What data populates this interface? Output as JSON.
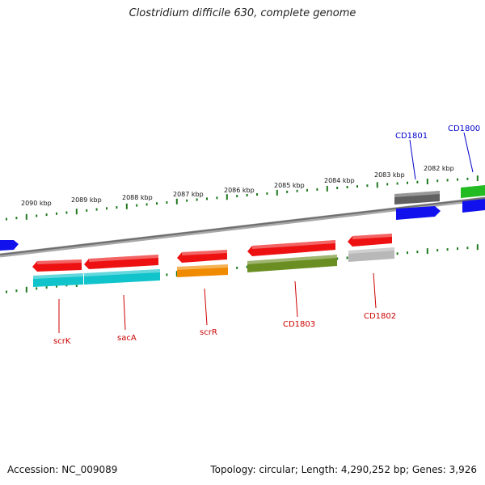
{
  "title": "Clostridium difficile 630, complete genome",
  "footer": {
    "accession": "Accession: NC_009089",
    "stats": "Topology: circular; Length: 4,290,252 bp; Genes: 3,926"
  },
  "ruler": {
    "labels": [
      "2090 kbp",
      "2089 kbp",
      "2088 kbp",
      "2087 kbp",
      "2086 kbp",
      "2085 kbp",
      "2084 kbp",
      "2083 kbp",
      "2082 kbp"
    ]
  },
  "genes": {
    "labels_bottom": [
      "scrK",
      "sacA",
      "scrR",
      "CD1803",
      "CD1802"
    ],
    "labels_top": [
      "CD1801",
      "CD1800"
    ]
  },
  "colors": {
    "red": "#ee1111",
    "cyan": "#11c4cc",
    "orange": "#f08a00",
    "olive": "#6b8e23",
    "lightgray": "#b8b8b8",
    "darkgray": "#606060",
    "blue": "#1111ee",
    "green": "#22bb22",
    "tick_green": "#1f7a1f",
    "label_red": "#cc0000",
    "label_blue": "#0000cc"
  }
}
